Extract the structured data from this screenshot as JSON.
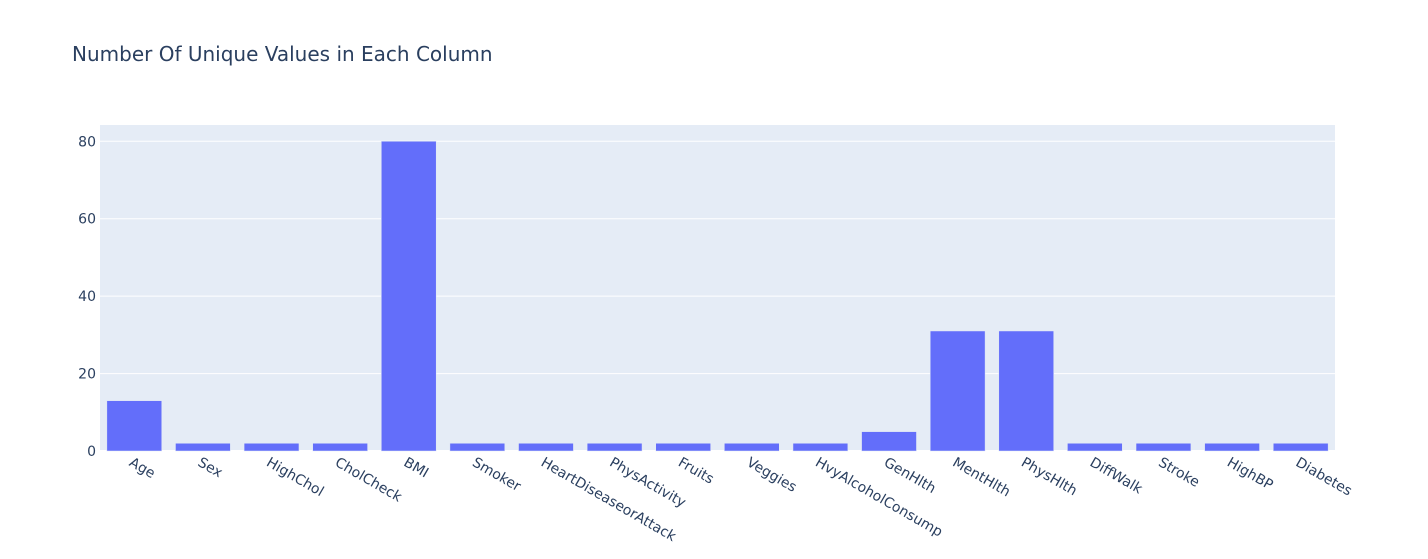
{
  "chart_data": {
    "type": "bar",
    "title": "Number Of Unique Values in Each Column",
    "xlabel": "",
    "ylabel": "",
    "categories": [
      "Age",
      "Sex",
      "HighChol",
      "CholCheck",
      "BMI",
      "Smoker",
      "HeartDiseaseorAttack",
      "PhysActivity",
      "Fruits",
      "Veggies",
      "HvyAlcoholConsump",
      "GenHlth",
      "MentHlth",
      "PhysHlth",
      "DiffWalk",
      "Stroke",
      "HighBP",
      "Diabetes"
    ],
    "values": [
      13,
      2,
      2,
      2,
      80,
      2,
      2,
      2,
      2,
      2,
      2,
      5,
      31,
      31,
      2,
      2,
      2,
      2
    ],
    "ylim": [
      0,
      84.2
    ],
    "y_ticks": [
      0,
      20,
      40,
      60,
      80
    ],
    "colors": {
      "bar": "#636efa",
      "plot_bg": "#e5ecf6",
      "text": "#2a3f5f"
    }
  }
}
